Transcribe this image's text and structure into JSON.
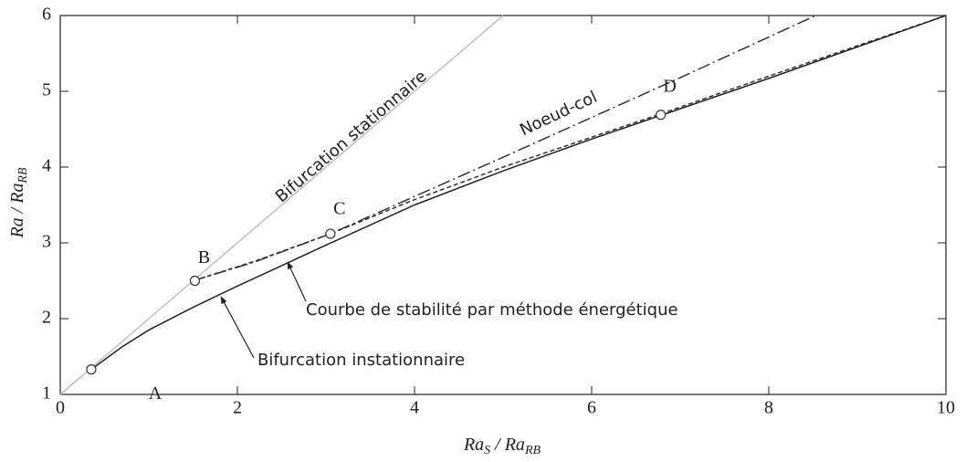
{
  "chart_data": {
    "type": "line",
    "xlabel": [
      "Ra",
      "S",
      " / Ra",
      "RB"
    ],
    "ylabel": [
      "Ra",
      " / Ra",
      "RB"
    ],
    "xlim": [
      0,
      10
    ],
    "xticks": [
      0,
      2,
      4,
      6,
      8,
      10
    ],
    "ylim": [
      1,
      6
    ],
    "yticks": [
      1,
      2,
      3,
      4,
      5,
      6
    ],
    "series": [
      {
        "color": "#c0c0c0",
        "dash": "none",
        "x": [
          0,
          5
        ],
        "values": [
          1,
          6
        ]
      },
      {
        "color": "#333333",
        "dash": "14 4 2 4",
        "x": [
          1.5,
          2.2,
          3.05,
          5,
          7,
          8.53
        ],
        "values": [
          2.5,
          2.75,
          3.12,
          4.13,
          5.18,
          6
        ]
      },
      {
        "color": "#333333",
        "dash": "5 3",
        "x": [
          1.5,
          2.2,
          3.05,
          4,
          5,
          6.8,
          8,
          10
        ],
        "values": [
          2.5,
          2.76,
          3.12,
          3.57,
          4.0,
          4.71,
          5.2,
          6
        ]
      },
      {
        "color": "#222222",
        "dash": "none",
        "x": [
          0.35,
          0.7,
          1.0,
          1.5,
          2.0,
          2.5,
          3.0,
          4.0,
          5.0,
          6.0,
          6.8,
          8.0,
          10.0
        ],
        "values": [
          1.33,
          1.63,
          1.85,
          2.15,
          2.43,
          2.7,
          2.97,
          3.5,
          3.95,
          4.37,
          4.69,
          5.17,
          6.0
        ]
      }
    ],
    "points": [
      {
        "label": "A",
        "x": 0.35,
        "y": 1.33
      },
      {
        "label": "B",
        "x": 1.52,
        "y": 2.5
      },
      {
        "label": "C",
        "x": 3.05,
        "y": 3.12
      },
      {
        "label": "D",
        "x": 6.78,
        "y": 4.69
      }
    ],
    "annotations": [
      "Bifurcation stationnaire",
      "Noeud-col",
      "Courbe de stabilité par méthode énergétique",
      "Bifurcation instationnaire"
    ]
  }
}
